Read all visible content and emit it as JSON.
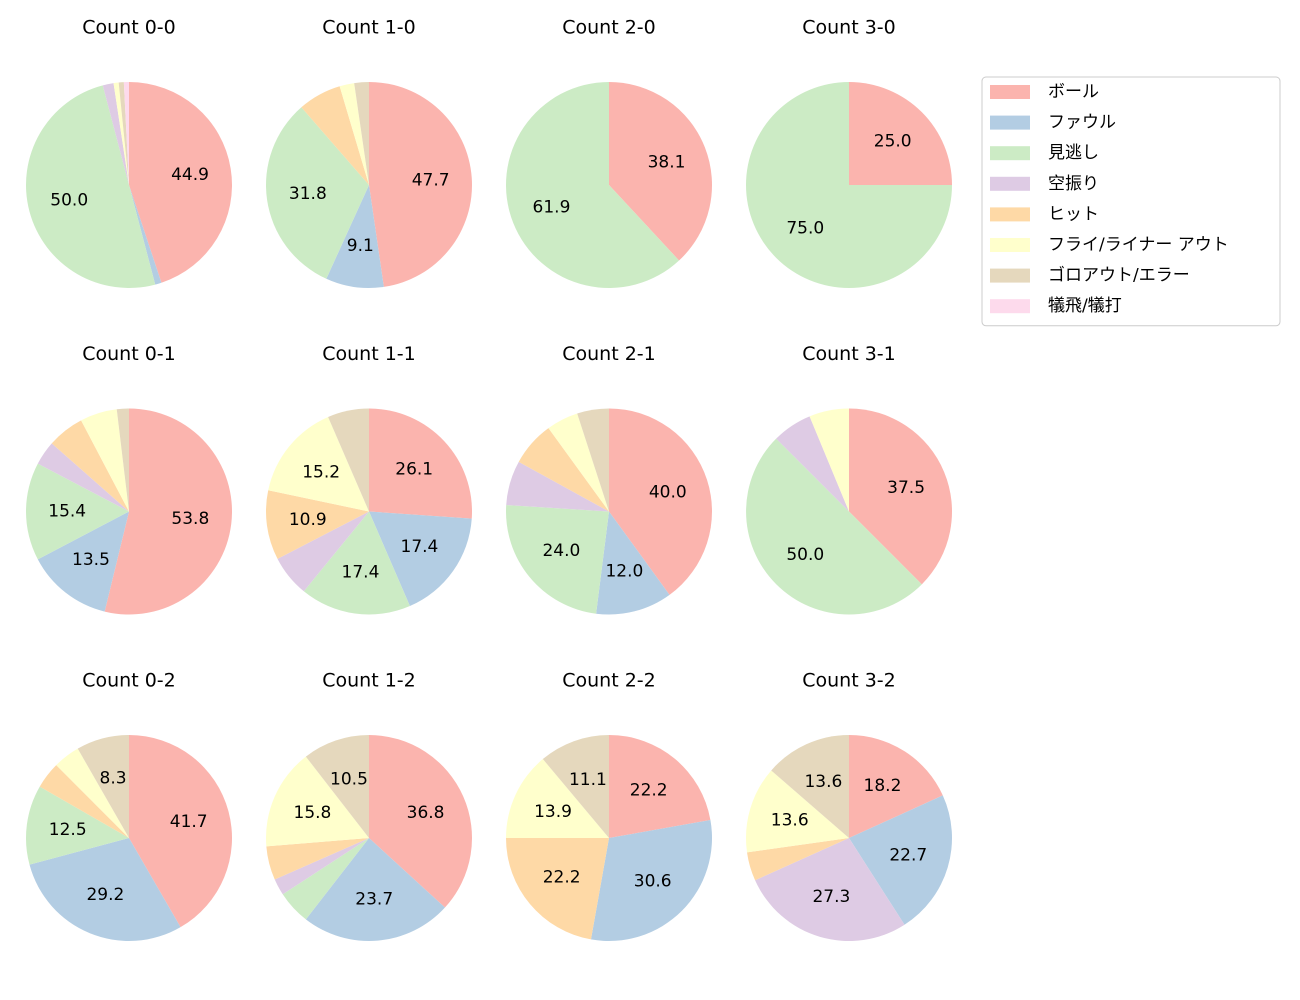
{
  "legend": {
    "categories": [
      "ボール",
      "ファウル",
      "見逃し",
      "空振り",
      "ヒット",
      "フライ/ライナー アウト",
      "ゴロアウト/エラー",
      "犠飛/犠打"
    ],
    "colors": [
      "#fbb4ae",
      "#b3cde3",
      "#ccebc5",
      "#decbe4",
      "#fed9a6",
      "#ffffcc",
      "#e5d8bd",
      "#fddaec"
    ],
    "position": "upper right"
  },
  "chart_data": [
    {
      "type": "pie",
      "title": "Count 0-0",
      "values": [
        44.9,
        1.0,
        50.0,
        1.7,
        0,
        0.8,
        0.8,
        0.8
      ],
      "value_labels": [
        "44.9",
        null,
        "50.0",
        null,
        null,
        null,
        null,
        null
      ]
    },
    {
      "type": "pie",
      "title": "Count 1-0",
      "values": [
        47.7,
        9.1,
        31.8,
        0,
        6.8,
        2.3,
        2.3,
        0
      ],
      "value_labels": [
        "47.7",
        "9.1",
        "31.8",
        null,
        null,
        null,
        null,
        null
      ]
    },
    {
      "type": "pie",
      "title": "Count 2-0",
      "values": [
        38.1,
        0,
        61.9,
        0,
        0,
        0,
        0,
        0
      ],
      "value_labels": [
        "38.1",
        null,
        "61.9",
        null,
        null,
        null,
        null,
        null
      ]
    },
    {
      "type": "pie",
      "title": "Count 3-0",
      "values": [
        25,
        0,
        75,
        0,
        0,
        0,
        0,
        0
      ],
      "value_labels": [
        "25.0",
        null,
        "75.0",
        null,
        null,
        null,
        null,
        null
      ]
    },
    {
      "type": "pie",
      "title": "Count 0-1",
      "values": [
        53.8,
        13.5,
        15.4,
        3.8,
        5.8,
        5.8,
        1.9,
        0
      ],
      "value_labels": [
        "53.8",
        "13.5",
        "15.4",
        null,
        null,
        null,
        null,
        null
      ]
    },
    {
      "type": "pie",
      "title": "Count 1-1",
      "values": [
        26.1,
        17.4,
        17.4,
        6.5,
        10.9,
        15.2,
        6.5,
        0
      ],
      "value_labels": [
        "26.1",
        "17.4",
        "17.4",
        null,
        "10.9",
        "15.2",
        null,
        null
      ]
    },
    {
      "type": "pie",
      "title": "Count 2-1",
      "values": [
        40,
        12,
        24,
        7,
        7,
        5,
        5,
        0
      ],
      "value_labels": [
        "40.0",
        "12.0",
        "24.0",
        null,
        null,
        null,
        null,
        null
      ]
    },
    {
      "type": "pie",
      "title": "Count 3-1",
      "values": [
        37.5,
        0,
        50,
        6.25,
        0,
        6.25,
        0,
        0
      ],
      "value_labels": [
        "37.5",
        null,
        "50.0",
        null,
        null,
        null,
        null,
        null
      ]
    },
    {
      "type": "pie",
      "title": "Count 0-2",
      "values": [
        41.7,
        29.2,
        12.5,
        0,
        4.2,
        4.2,
        8.3,
        0
      ],
      "value_labels": [
        "41.7",
        "29.2",
        "12.5",
        null,
        null,
        null,
        "8.3",
        null
      ]
    },
    {
      "type": "pie",
      "title": "Count 1-2",
      "values": [
        36.8,
        23.7,
        5.3,
        2.6,
        5.3,
        15.8,
        10.5,
        0
      ],
      "value_labels": [
        "36.8",
        "23.7",
        null,
        null,
        null,
        "15.8",
        "10.5",
        null
      ]
    },
    {
      "type": "pie",
      "title": "Count 2-2",
      "values": [
        22.2,
        30.6,
        0,
        0,
        22.2,
        13.9,
        11.1,
        0
      ],
      "value_labels": [
        "22.2",
        "30.6",
        null,
        null,
        "22.2",
        "13.9",
        "11.1",
        null
      ]
    },
    {
      "type": "pie",
      "title": "Count 3-2",
      "values": [
        18.2,
        22.7,
        0,
        27.3,
        4.5,
        13.6,
        13.6,
        0
      ],
      "value_labels": [
        "18.2",
        "22.7",
        null,
        "27.3",
        null,
        "13.6",
        "13.6",
        null
      ]
    }
  ]
}
